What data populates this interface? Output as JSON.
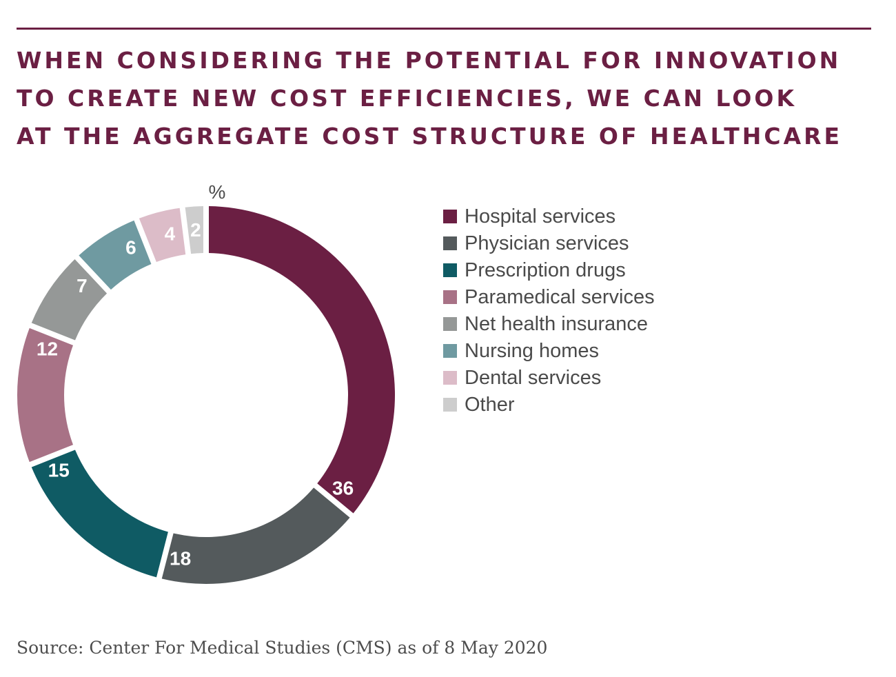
{
  "title_lines": [
    "WHEN CONSIDERING THE POTENTIAL FOR INNOVATION",
    "TO CREATE NEW COST EFFICIENCIES, WE CAN LOOK",
    "AT THE AGGREGATE COST STRUCTURE OF HEALTHCARE"
  ],
  "source": "Source: Center For Medical Studies (CMS) as of 8 May 2020",
  "chart_data": {
    "type": "pie",
    "variant": "donut",
    "unit_label": "%",
    "legend_position": "right",
    "slices": [
      {
        "label": "Hospital services",
        "value": 36,
        "color": "#6b1f43"
      },
      {
        "label": "Physician services",
        "value": 18,
        "color": "#545a5c"
      },
      {
        "label": "Prescription drugs",
        "value": 15,
        "color": "#0f5b64"
      },
      {
        "label": "Paramedical services",
        "value": 12,
        "color": "#a87286"
      },
      {
        "label": "Net health insurance",
        "value": 7,
        "color": "#959897"
      },
      {
        "label": "Nursing homes",
        "value": 6,
        "color": "#6f9aa1"
      },
      {
        "label": "Dental services",
        "value": 4,
        "color": "#dcbcc8"
      },
      {
        "label": "Other",
        "value": 2,
        "color": "#cdcdcd"
      }
    ]
  }
}
